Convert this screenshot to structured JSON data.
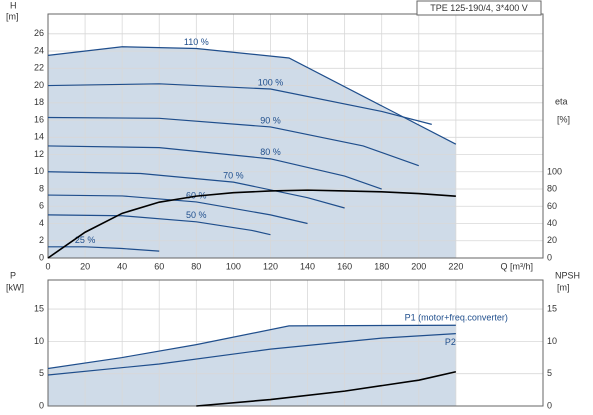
{
  "chart_data": [
    {
      "type": "line",
      "title": "TPE 125-190/4, 3*400 V",
      "xlabel": "Q [m³/h]",
      "ylabel": "H",
      "yunit": "[m]",
      "y2label": "eta",
      "y2unit": "[%]",
      "xlim": [
        0,
        267
      ],
      "xticks": [
        0,
        20,
        40,
        60,
        80,
        100,
        120,
        140,
        160,
        180,
        200,
        220
      ],
      "ylim": [
        0,
        28.3
      ],
      "yticks": [
        0,
        2,
        4,
        6,
        8,
        10,
        12,
        14,
        16,
        18,
        20,
        22,
        24,
        26
      ],
      "y2lim": [
        0,
        284
      ],
      "y2ticks": [
        0,
        20,
        40,
        60,
        80,
        100
      ],
      "grid": true,
      "series": [
        {
          "name": "110 %",
          "color": "#1f4e8c",
          "x": [
            0,
            40,
            80,
            130,
            220
          ],
          "values": [
            23.5,
            24.5,
            24.3,
            23.2,
            13.2
          ]
        },
        {
          "name": "100 %",
          "color": "#1f4e8c",
          "x": [
            0,
            60,
            120,
            180,
            207
          ],
          "values": [
            20,
            20.2,
            19.6,
            17,
            15.5
          ]
        },
        {
          "name": "90 %",
          "color": "#1f4e8c",
          "x": [
            0,
            60,
            120,
            170,
            200
          ],
          "values": [
            16.3,
            16.2,
            15.2,
            13,
            10.7
          ]
        },
        {
          "name": "80 %",
          "color": "#1f4e8c",
          "x": [
            0,
            60,
            120,
            160,
            180
          ],
          "values": [
            13,
            12.8,
            11.5,
            9.5,
            8
          ]
        },
        {
          "name": "70 %",
          "color": "#1f4e8c",
          "x": [
            0,
            50,
            100,
            140,
            160
          ],
          "values": [
            10,
            9.8,
            8.8,
            7,
            5.8
          ]
        },
        {
          "name": "60 %",
          "color": "#1f4e8c",
          "x": [
            0,
            40,
            80,
            120,
            140
          ],
          "values": [
            7.3,
            7.2,
            6.5,
            5,
            4
          ]
        },
        {
          "name": "50 %",
          "color": "#1f4e8c",
          "x": [
            0,
            40,
            80,
            110,
            120
          ],
          "values": [
            5,
            4.9,
            4.2,
            3.2,
            2.7
          ]
        },
        {
          "name": "25 %",
          "color": "#1f4e8c",
          "x": [
            0,
            20,
            40,
            60
          ],
          "values": [
            1.3,
            1.3,
            1.1,
            0.8
          ]
        },
        {
          "color": "#000000",
          "axis": "y2",
          "x": [
            0,
            20,
            40,
            60,
            80,
            100,
            120,
            140,
            160,
            180,
            200,
            220
          ],
          "values": [
            0,
            30,
            52,
            65,
            72,
            76,
            78,
            79,
            78,
            77,
            75,
            72
          ]
        }
      ]
    },
    {
      "type": "line",
      "ylabel": "P",
      "yunit": "[kW]",
      "y2label": "NPSH",
      "y2unit": "[m]",
      "xlim": [
        0,
        267
      ],
      "ylim": [
        0,
        19.5
      ],
      "yticks": [
        0,
        5,
        10,
        15
      ],
      "y2lim": [
        0,
        19.5
      ],
      "y2ticks": [
        0,
        5,
        10,
        15
      ],
      "grid": true,
      "series": [
        {
          "name": "P1 (motor+freq.converter)",
          "color": "#1f4e8c",
          "x": [
            0,
            40,
            80,
            130,
            220
          ],
          "values": [
            5.8,
            7.5,
            9.5,
            12.4,
            12.5
          ]
        },
        {
          "name": "P2",
          "color": "#1f4e8c",
          "x": [
            0,
            60,
            120,
            180,
            220
          ],
          "values": [
            4.8,
            6.5,
            8.8,
            10.5,
            11.2
          ]
        },
        {
          "color": "#000000",
          "axis": "y2",
          "x": [
            80,
            120,
            160,
            200,
            220
          ],
          "values": [
            0,
            1,
            2.3,
            4,
            5.3
          ]
        }
      ]
    }
  ]
}
